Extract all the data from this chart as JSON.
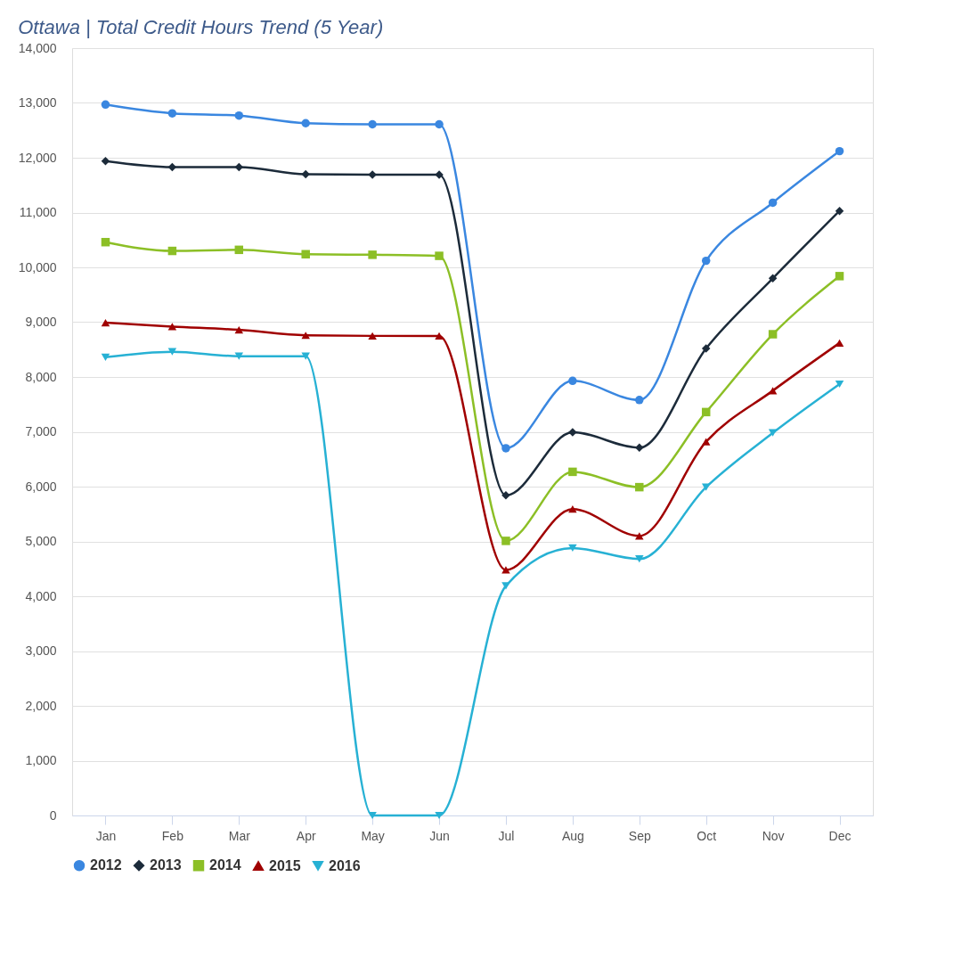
{
  "chart_data": {
    "type": "line",
    "title": "Ottawa | Total Credit Hours Trend (5 Year)",
    "categories": [
      "Jan",
      "Feb",
      "Mar",
      "Apr",
      "May",
      "Jun",
      "Jul",
      "Aug",
      "Sep",
      "Oct",
      "Nov",
      "Dec"
    ],
    "series": [
      {
        "name": "2012",
        "color": "#3a87e0",
        "marker": "circle",
        "values": [
          12970,
          12810,
          12770,
          12630,
          12610,
          12610,
          6700,
          7930,
          7580,
          10120,
          11180,
          12120
        ]
      },
      {
        "name": "2013",
        "color": "#1c2b3a",
        "marker": "diamond",
        "values": [
          11940,
          11830,
          11830,
          11700,
          11690,
          11690,
          5840,
          6990,
          6710,
          8520,
          9800,
          11030
        ]
      },
      {
        "name": "2014",
        "color": "#8cbf26",
        "marker": "square",
        "values": [
          10460,
          10300,
          10320,
          10240,
          10230,
          10210,
          5010,
          6270,
          5990,
          7360,
          8780,
          9840
        ]
      },
      {
        "name": "2015",
        "color": "#a00000",
        "marker": "triangle",
        "values": [
          8990,
          8920,
          8860,
          8760,
          8750,
          8750,
          4480,
          5590,
          5100,
          6820,
          7750,
          8620
        ]
      },
      {
        "name": "2016",
        "color": "#27b1d4",
        "marker": "triangle-down",
        "values": [
          8360,
          8460,
          8380,
          8380,
          0,
          0,
          4190,
          4880,
          4680,
          5990,
          6980,
          7870
        ]
      }
    ],
    "ylim": [
      0,
      14000
    ],
    "yticks": [
      0,
      {
        "value": 1000,
        "label": "1,000"
      },
      {
        "value": 2000,
        "label": "2,000"
      },
      {
        "value": 3000,
        "label": "3,000"
      },
      {
        "value": 4000,
        "label": "4,000"
      },
      {
        "value": 5000,
        "label": "5,000"
      },
      {
        "value": 6000,
        "label": "6,000"
      },
      {
        "value": 7000,
        "label": "7,000"
      },
      {
        "value": 8000,
        "label": "8,000"
      },
      {
        "value": 9000,
        "label": "9,000"
      },
      {
        "value": 10000,
        "label": "10,000"
      },
      {
        "value": 11000,
        "label": "11,000"
      },
      {
        "value": 12000,
        "label": "12,000"
      },
      {
        "value": 13000,
        "label": "13,000"
      },
      {
        "value": 14000,
        "label": "14,000"
      }
    ],
    "grid": "y",
    "legend": "bottom",
    "line_style": "solid"
  }
}
